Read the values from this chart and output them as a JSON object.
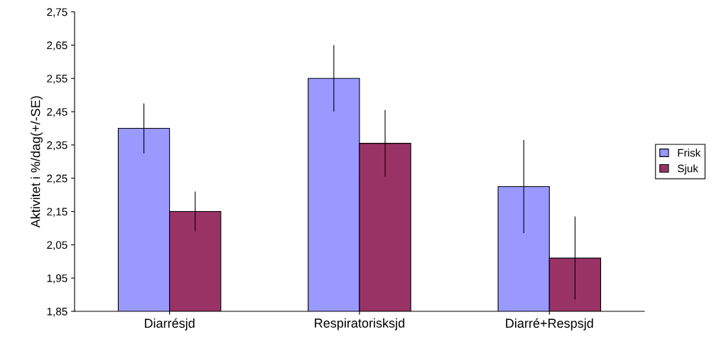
{
  "chart_data": {
    "type": "bar",
    "ylabel": "Aktivitet i %/dag(+/-SE)",
    "categories": [
      "Diarrésjd",
      "Respiratorisksjd",
      "Diarré+Respsjd"
    ],
    "series": [
      {
        "name": "Frisk",
        "color": "#9999ff",
        "values": [
          2.4,
          2.55,
          2.225
        ],
        "errors": [
          0.075,
          0.1,
          0.14
        ]
      },
      {
        "name": "Sjuk",
        "color": "#993366",
        "values": [
          2.15,
          2.355,
          2.01
        ],
        "errors": [
          0.06,
          0.1,
          0.125
        ]
      }
    ],
    "ylim": [
      1.85,
      2.75
    ],
    "yticks": [
      {
        "value": 1.85,
        "label": "1,85"
      },
      {
        "value": 1.95,
        "label": "1,95"
      },
      {
        "value": 2.05,
        "label": "2,05"
      },
      {
        "value": 2.15,
        "label": "2,15"
      },
      {
        "value": 2.25,
        "label": "2,25"
      },
      {
        "value": 2.35,
        "label": "2,35"
      },
      {
        "value": 2.45,
        "label": "2,45"
      },
      {
        "value": 2.55,
        "label": "2,55"
      },
      {
        "value": 2.65,
        "label": "2,65"
      },
      {
        "value": 2.75,
        "label": "2,75"
      }
    ],
    "grid": false,
    "legend": "right"
  }
}
